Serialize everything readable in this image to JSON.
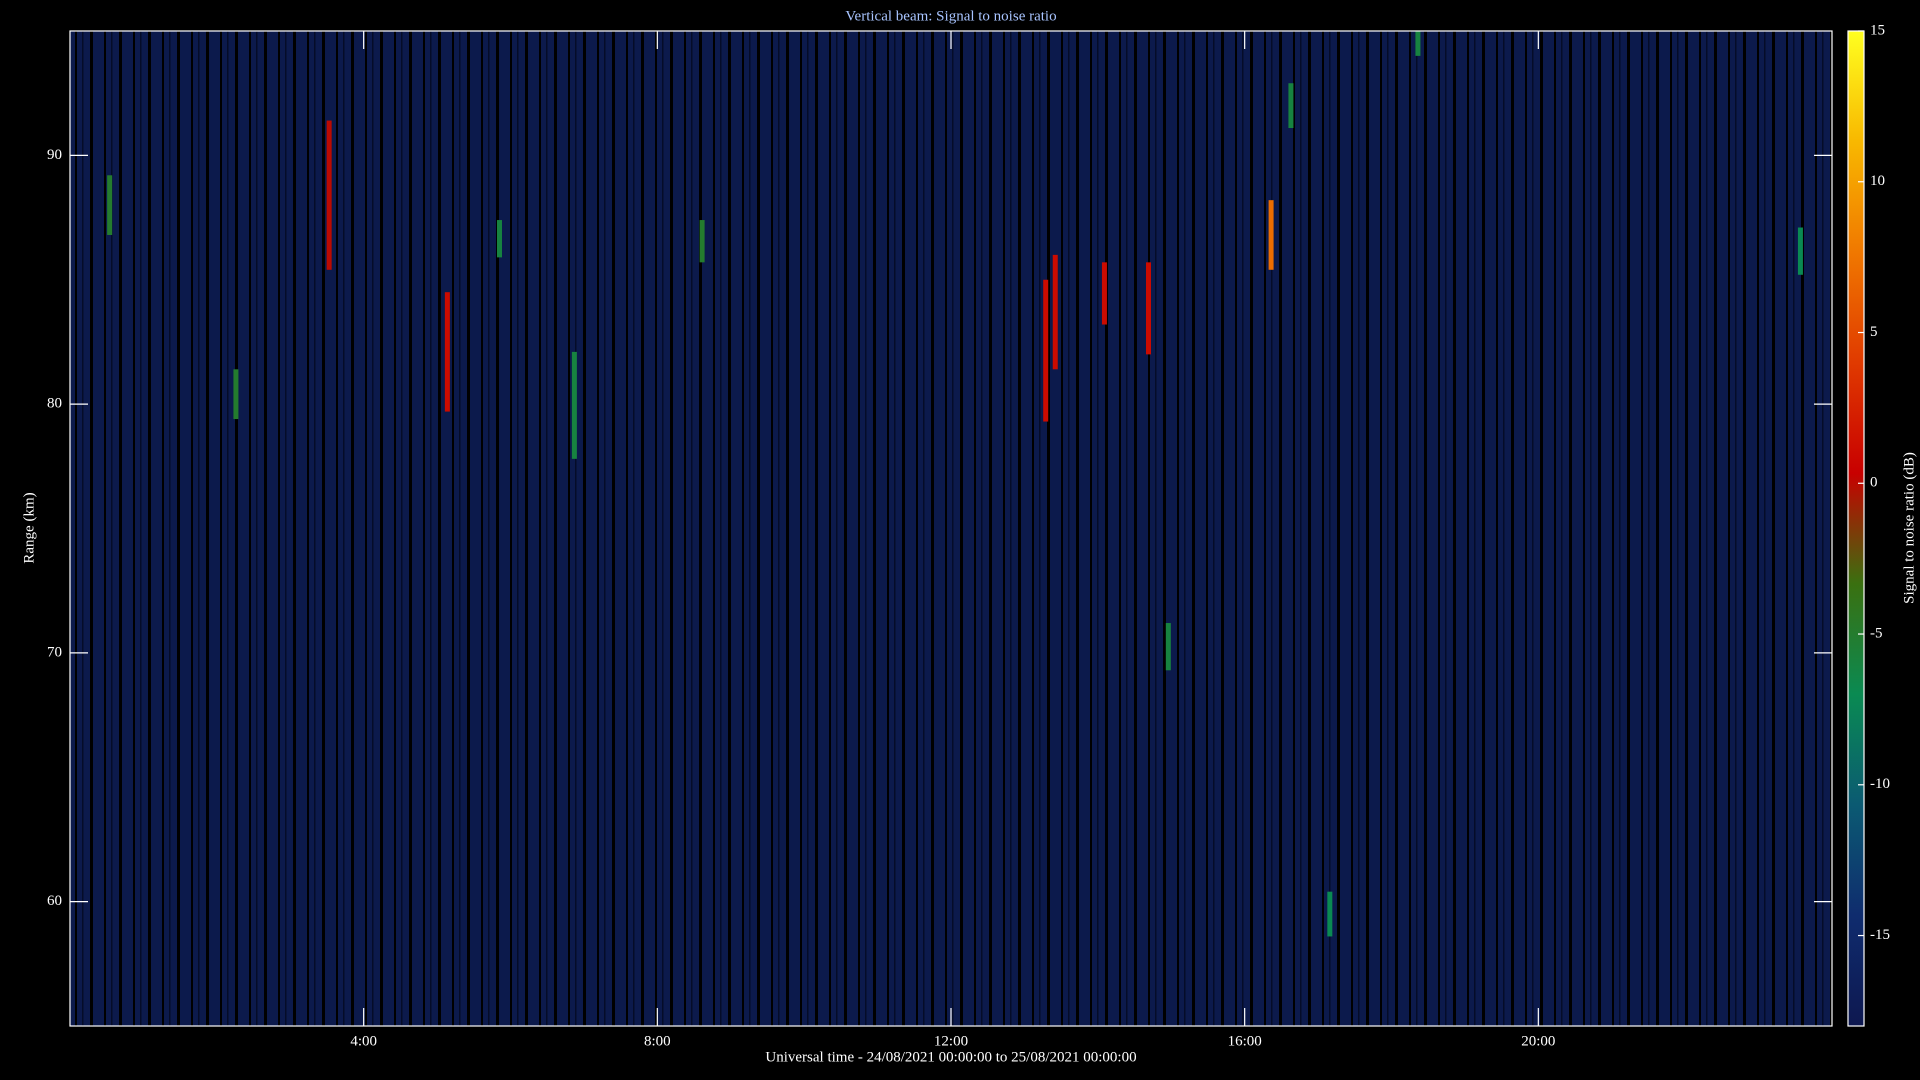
{
  "chart_data": {
    "type": "heatmap",
    "title": "Vertical beam: Signal to noise ratio",
    "x_label": "Universal time - 24/08/2021 00:00:00 to 25/08/2021 00:00:00",
    "y_label": "Range (km)",
    "colorbar_label": "Signal to noise ratio (dB)",
    "xlim": [
      0,
      24
    ],
    "xticks": [
      {
        "value": 4,
        "label": "4:00"
      },
      {
        "value": 8,
        "label": "8:00"
      },
      {
        "value": 12,
        "label": "12:00"
      },
      {
        "value": 16,
        "label": "16:00"
      },
      {
        "value": 20,
        "label": "20:00"
      }
    ],
    "ylim": [
      55,
      95
    ],
    "yticks": [
      60,
      70,
      80,
      90
    ],
    "clim": [
      -18,
      15
    ],
    "cticks": [
      -15,
      -10,
      -5,
      0,
      5,
      10,
      15
    ],
    "colors": [
      "#0e1850",
      "#0f2c6e",
      "#0b5a72",
      "#0a8a52",
      "#3a7010",
      "#c80000",
      "#e03a00",
      "#f07800",
      "#f8b800",
      "#ffff20"
    ],
    "background_color": "#0c1a4c",
    "cells": {
      "x": [
        0.54,
        3.53,
        2.26,
        5.14,
        5.85,
        6.87,
        8.61,
        13.29,
        13.42,
        14.09,
        14.69,
        14.96,
        16.36,
        16.63,
        18.36,
        17.16,
        23.57
      ],
      "y_from": [
        86.8,
        85.4,
        79.4,
        79.7,
        85.9,
        77.8,
        85.7,
        79.3,
        81.4,
        83.2,
        82.0,
        69.3,
        85.4,
        91.1,
        94.0,
        58.6,
        85.2
      ],
      "y_to": [
        89.2,
        91.4,
        81.4,
        84.5,
        87.4,
        82.1,
        87.4,
        85.0,
        86.0,
        85.7,
        85.7,
        71.2,
        88.2,
        92.9,
        95.0,
        60.4,
        87.1
      ],
      "values": [
        -5,
        0,
        -5,
        1,
        -6,
        -6,
        -5,
        1,
        1,
        1,
        1,
        -6,
        7,
        -6,
        -6,
        -7,
        -7
      ]
    }
  }
}
